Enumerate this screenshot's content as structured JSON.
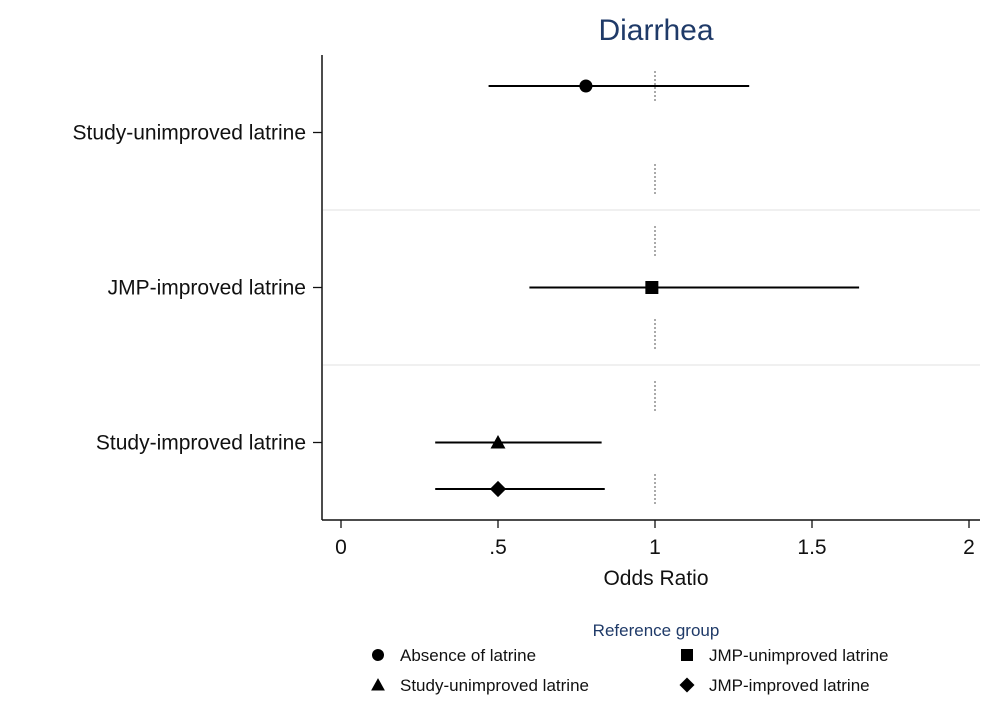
{
  "chart_data": {
    "type": "scatter",
    "subtype": "forest-plot-with-confidence-intervals",
    "title": "Diarrhea",
    "xlabel": "Odds Ratio",
    "xlim": [
      0,
      2
    ],
    "x_ticks": [
      0,
      0.5,
      1,
      1.5,
      2
    ],
    "x_tick_labels": [
      "0",
      ".5",
      "1",
      "1.5",
      "2"
    ],
    "reference_line": 1,
    "categories": [
      "Study-unimproved latrine",
      "JMP-improved latrine",
      "Study-improved latrine"
    ],
    "legend": {
      "title": "Reference group",
      "placement": "bottom",
      "entries": [
        {
          "label": "Absence of latrine",
          "marker": "circle"
        },
        {
          "label": "JMP-unimproved latrine",
          "marker": "square"
        },
        {
          "label": "Study-unimproved latrine",
          "marker": "triangle"
        },
        {
          "label": "JMP-improved latrine",
          "marker": "diamond"
        }
      ]
    },
    "series": [
      {
        "name": "Absence of latrine",
        "marker": "circle",
        "category": "Study-unimproved latrine",
        "slot": 0,
        "estimate": 0.78,
        "ci_low": 0.47,
        "ci_high": 1.3
      },
      {
        "name": "JMP-unimproved latrine",
        "marker": "square",
        "category": "JMP-improved latrine",
        "slot": 1,
        "estimate": 0.99,
        "ci_low": 0.6,
        "ci_high": 1.65
      },
      {
        "name": "Study-unimproved latrine",
        "marker": "triangle",
        "category": "Study-improved latrine",
        "slot": 1,
        "estimate": 0.5,
        "ci_low": 0.3,
        "ci_high": 0.83
      },
      {
        "name": "JMP-improved latrine",
        "marker": "diamond",
        "category": "Study-improved latrine",
        "slot": 2,
        "estimate": 0.5,
        "ci_low": 0.3,
        "ci_high": 0.84
      }
    ],
    "grid": false
  }
}
